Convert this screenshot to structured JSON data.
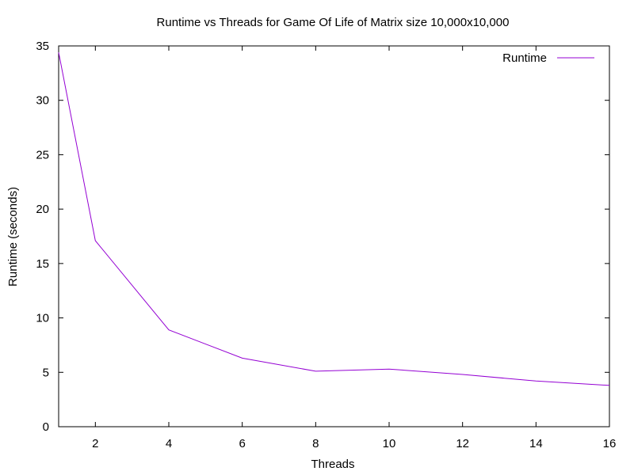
{
  "chart_data": {
    "type": "line",
    "title": "Runtime vs Threads for Game Of Life of Matrix size 10,000x10,000",
    "xlabel": "Threads",
    "ylabel": "Runtime (seconds)",
    "xlim": [
      1,
      16
    ],
    "ylim": [
      0,
      35
    ],
    "xticks": [
      2,
      4,
      6,
      8,
      10,
      12,
      14,
      16
    ],
    "yticks": [
      0,
      5,
      10,
      15,
      20,
      25,
      30,
      35
    ],
    "grid": false,
    "legend_position": "top-right",
    "series": [
      {
        "name": "Runtime",
        "color": "#9400d3",
        "x": [
          1,
          2,
          4,
          6,
          8,
          10,
          12,
          14,
          16
        ],
        "y": [
          34.4,
          17.1,
          8.9,
          6.3,
          5.1,
          5.3,
          4.8,
          4.2,
          3.8
        ]
      }
    ]
  }
}
